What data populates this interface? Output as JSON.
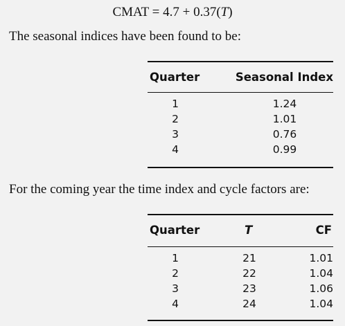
{
  "formula": {
    "lhs": "CMAT",
    "rhs_prefix": "= 4.7 + 0.37(",
    "var": "T",
    "rhs_suffix": ")"
  },
  "para1": "The seasonal indices have been found to be:",
  "table1": {
    "headers": [
      "Quarter",
      "Seasonal Index"
    ],
    "rows": [
      [
        "1",
        "1.24"
      ],
      [
        "2",
        "1.01"
      ],
      [
        "3",
        "0.76"
      ],
      [
        "4",
        "0.99"
      ]
    ]
  },
  "para2": "For the coming year the time index and cycle factors are:",
  "table2": {
    "headers": [
      "Quarter",
      "T",
      "CF"
    ],
    "rows": [
      [
        "1",
        "21",
        "1.01"
      ],
      [
        "2",
        "22",
        "1.04"
      ],
      [
        "3",
        "23",
        "1.06"
      ],
      [
        "4",
        "24",
        "1.04"
      ]
    ]
  }
}
